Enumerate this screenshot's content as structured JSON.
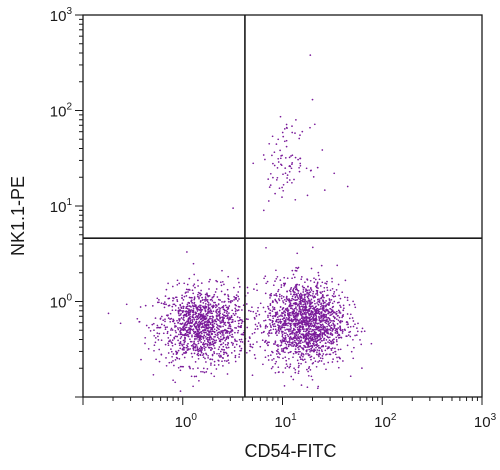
{
  "chart_data": {
    "type": "scatter",
    "title": "",
    "xlabel": "CD54-FITC",
    "ylabel": "NK1.1-PE",
    "xscale": "log",
    "yscale": "log",
    "xlim": [
      0.1,
      1000
    ],
    "ylim": [
      0.1,
      1000
    ],
    "x_ticks": [
      {
        "base": "10",
        "exp": "0",
        "value": 1
      },
      {
        "base": "10",
        "exp": "1",
        "value": 10
      },
      {
        "base": "10",
        "exp": "2",
        "value": 100
      },
      {
        "base": "10",
        "exp": "3",
        "value": 1000
      }
    ],
    "y_ticks": [
      {
        "base": "10",
        "exp": "0",
        "value": 1
      },
      {
        "base": "10",
        "exp": "1",
        "value": 10
      },
      {
        "base": "10",
        "exp": "2",
        "value": 100
      },
      {
        "base": "10",
        "exp": "3",
        "value": 1000
      }
    ],
    "quadrant_gates": {
      "x": 4.2,
      "y": 4.6
    },
    "point_color": "#7a1a9a",
    "populations": [
      {
        "approx_count": 1300,
        "x_center": 1.6,
        "y_center": 0.55,
        "x_spread_log": 0.22,
        "y_spread_log": 0.2
      },
      {
        "approx_count": 1700,
        "x_center": 17,
        "y_center": 0.6,
        "x_spread_log": 0.2,
        "y_spread_log": 0.22
      },
      {
        "approx_count": 90,
        "x_center": 11,
        "y_center": 30,
        "x_spread_log": 0.12,
        "y_spread_log": 0.18
      }
    ],
    "outliers": [
      {
        "x": 19,
        "y": 380
      },
      {
        "x": 20,
        "y": 130
      },
      {
        "x": 33,
        "y": 22
      },
      {
        "x": 45,
        "y": 16
      },
      {
        "x": 6.5,
        "y": 9
      },
      {
        "x": 3.2,
        "y": 9.5
      },
      {
        "x": 0.18,
        "y": 0.75
      },
      {
        "x": 1.1,
        "y": 3.3
      }
    ]
  }
}
